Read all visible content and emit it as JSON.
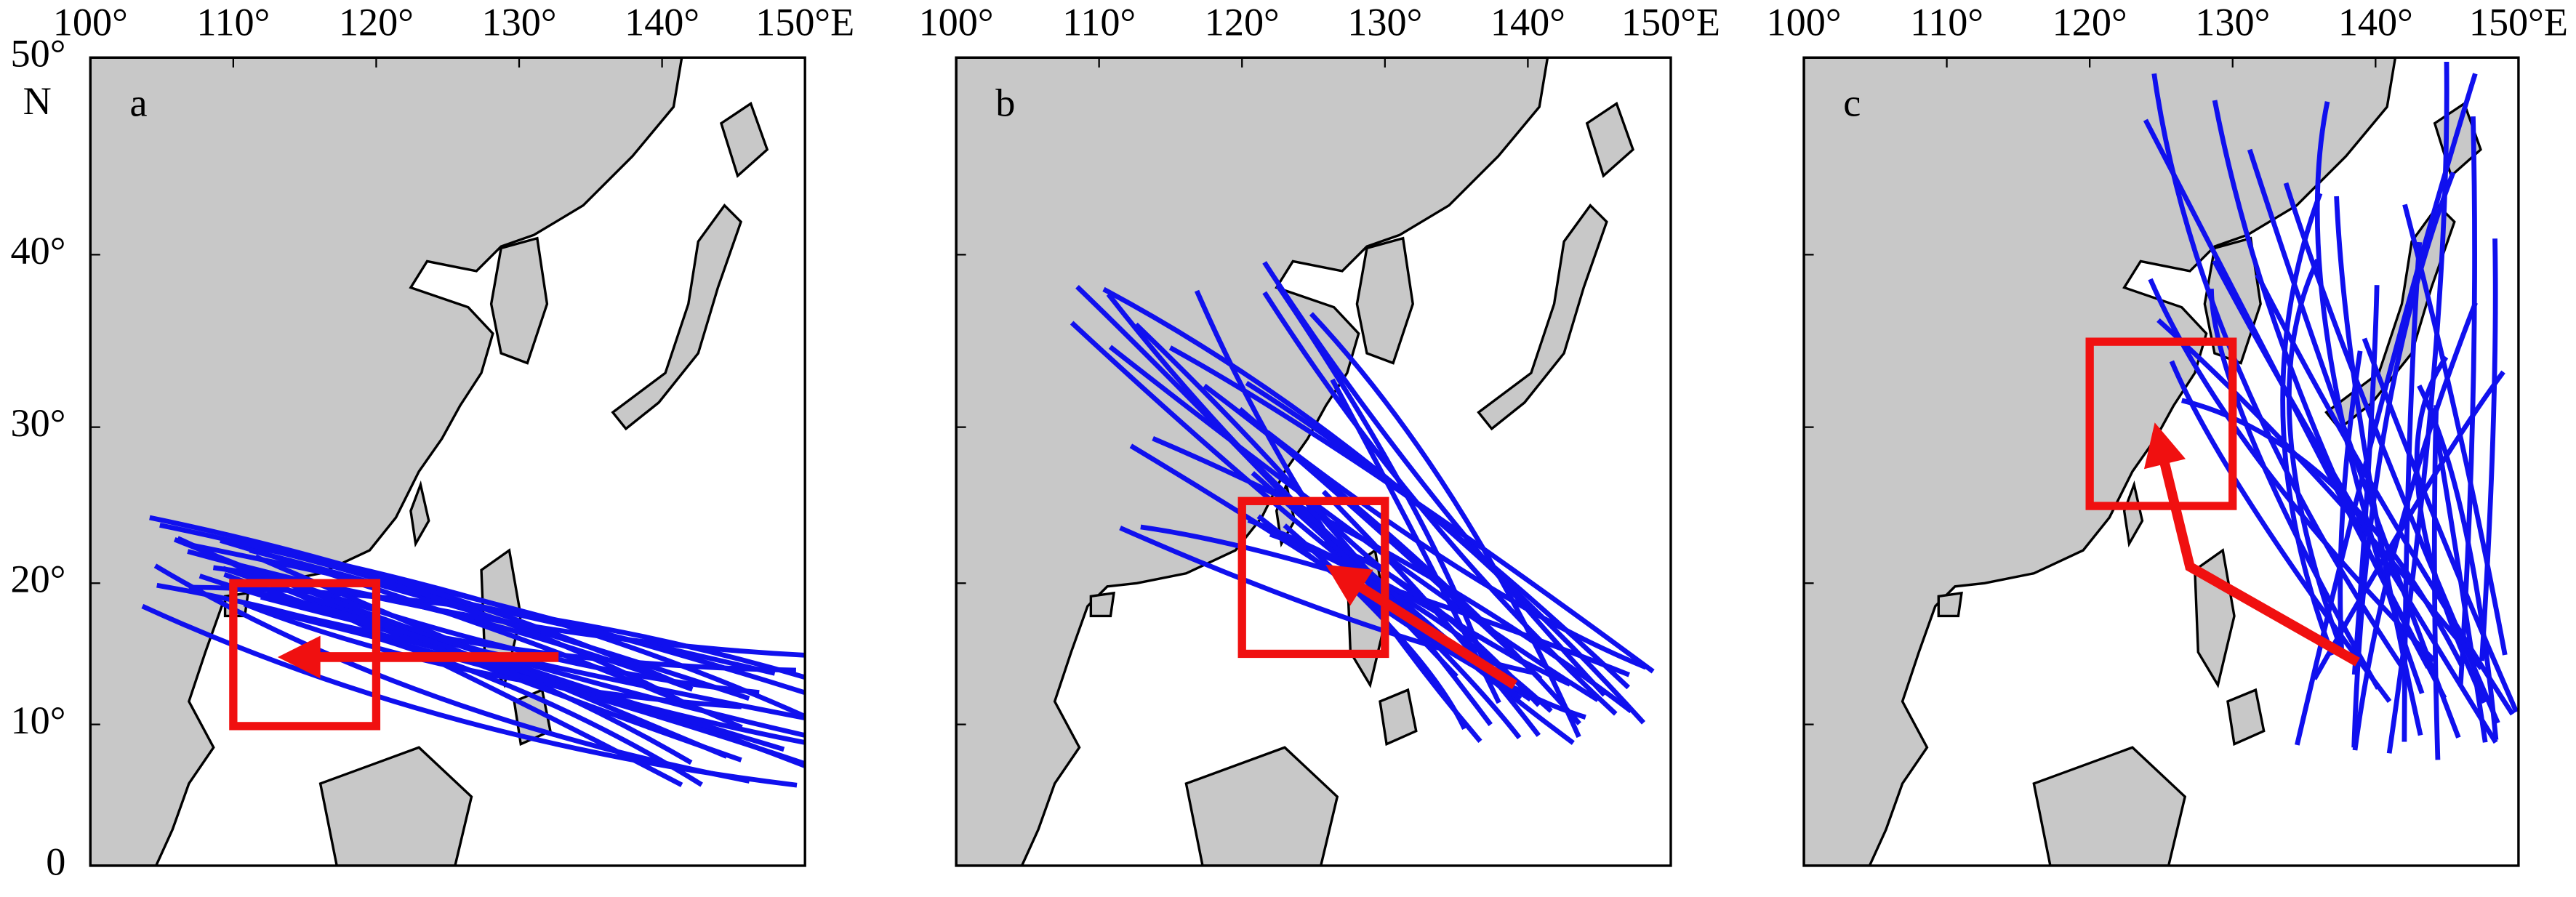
{
  "panels": [
    {
      "label": "a"
    },
    {
      "label": "b"
    },
    {
      "label": "c"
    }
  ],
  "x_tick_labels": [
    "100°",
    "110°",
    "120°",
    "130°",
    "140°",
    "150°E"
  ],
  "y_tick_labels": [
    "50°",
    "40°",
    "30°",
    "20°",
    "10°",
    "0"
  ],
  "north_label": "N"
}
